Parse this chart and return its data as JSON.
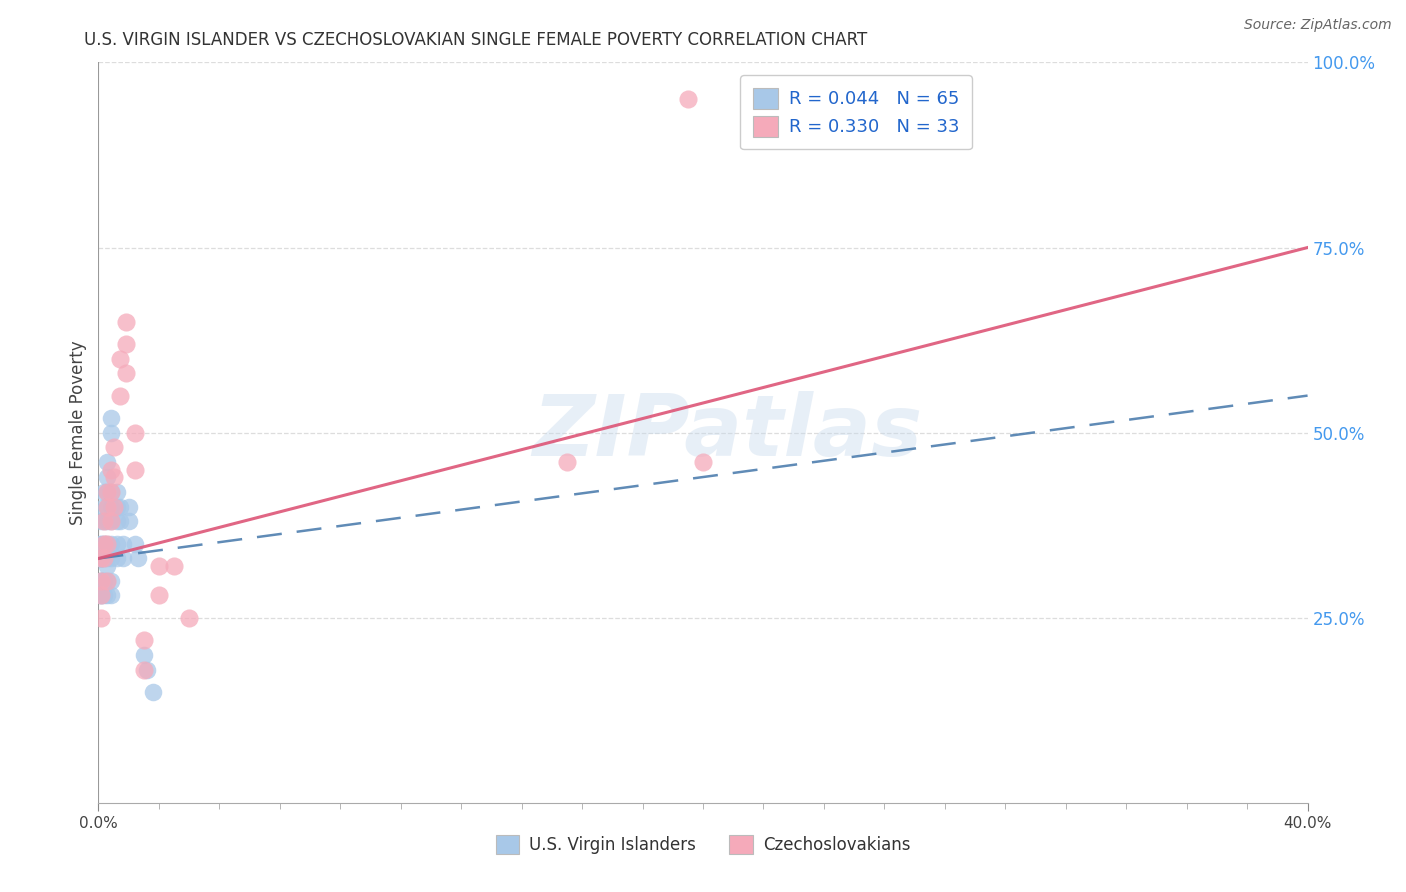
{
  "title": "U.S. VIRGIN ISLANDER VS CZECHOSLOVAKIAN SINGLE FEMALE POVERTY CORRELATION CHART",
  "source": "Source: ZipAtlas.com",
  "ylabel": "Single Female Poverty",
  "xmin": 0.0,
  "xmax": 0.4,
  "ymin": 0.0,
  "ymax": 1.0,
  "xtick_major": [
    0.0,
    0.4
  ],
  "xtick_major_labels": [
    "0.0%",
    "40.0%"
  ],
  "yticks_right": [
    0.25,
    0.5,
    0.75,
    1.0
  ],
  "ytick_labels_right": [
    "25.0%",
    "50.0%",
    "75.0%",
    "100.0%"
  ],
  "blue_R": 0.044,
  "blue_N": 65,
  "pink_R": 0.33,
  "pink_N": 33,
  "blue_color": "#a8c8e8",
  "pink_color": "#f5aaba",
  "blue_line_color": "#4477aa",
  "pink_line_color": "#dd5577",
  "watermark_text": "ZIPatlas",
  "legend_label_blue": "U.S. Virgin Islanders",
  "legend_label_pink": "Czechoslovakians",
  "blue_scatter_x": [
    0.001,
    0.001,
    0.001,
    0.001,
    0.001,
    0.001,
    0.001,
    0.001,
    0.001,
    0.001,
    0.001,
    0.001,
    0.001,
    0.001,
    0.001,
    0.001,
    0.001,
    0.001,
    0.001,
    0.001,
    0.002,
    0.002,
    0.002,
    0.002,
    0.002,
    0.002,
    0.002,
    0.002,
    0.002,
    0.002,
    0.003,
    0.003,
    0.003,
    0.003,
    0.003,
    0.003,
    0.003,
    0.003,
    0.003,
    0.003,
    0.004,
    0.004,
    0.004,
    0.004,
    0.004,
    0.004,
    0.004,
    0.004,
    0.004,
    0.006,
    0.006,
    0.006,
    0.006,
    0.006,
    0.007,
    0.007,
    0.008,
    0.008,
    0.01,
    0.01,
    0.012,
    0.013,
    0.015,
    0.016,
    0.018
  ],
  "blue_scatter_y": [
    0.33,
    0.33,
    0.33,
    0.33,
    0.33,
    0.33,
    0.33,
    0.33,
    0.33,
    0.33,
    0.3,
    0.3,
    0.3,
    0.3,
    0.28,
    0.28,
    0.28,
    0.35,
    0.35,
    0.38,
    0.33,
    0.33,
    0.3,
    0.3,
    0.35,
    0.35,
    0.38,
    0.4,
    0.42,
    0.28,
    0.33,
    0.35,
    0.38,
    0.4,
    0.3,
    0.28,
    0.42,
    0.44,
    0.46,
    0.32,
    0.35,
    0.38,
    0.4,
    0.42,
    0.3,
    0.28,
    0.33,
    0.5,
    0.52,
    0.38,
    0.4,
    0.35,
    0.33,
    0.42,
    0.4,
    0.38,
    0.35,
    0.33,
    0.4,
    0.38,
    0.35,
    0.33,
    0.2,
    0.18,
    0.15
  ],
  "pink_scatter_x": [
    0.001,
    0.001,
    0.001,
    0.001,
    0.002,
    0.002,
    0.002,
    0.003,
    0.003,
    0.003,
    0.003,
    0.004,
    0.004,
    0.004,
    0.005,
    0.005,
    0.005,
    0.007,
    0.007,
    0.009,
    0.009,
    0.009,
    0.012,
    0.012,
    0.015,
    0.015,
    0.02,
    0.02,
    0.025,
    0.03,
    0.155,
    0.195,
    0.2
  ],
  "pink_scatter_y": [
    0.33,
    0.3,
    0.28,
    0.25,
    0.38,
    0.35,
    0.33,
    0.42,
    0.4,
    0.35,
    0.3,
    0.45,
    0.42,
    0.38,
    0.48,
    0.44,
    0.4,
    0.6,
    0.55,
    0.65,
    0.62,
    0.58,
    0.5,
    0.45,
    0.22,
    0.18,
    0.32,
    0.28,
    0.32,
    0.25,
    0.46,
    0.95,
    0.46
  ],
  "pink_line_y0": 0.33,
  "pink_line_y1": 0.75,
  "blue_line_y0": 0.33,
  "blue_line_y1": 0.55
}
